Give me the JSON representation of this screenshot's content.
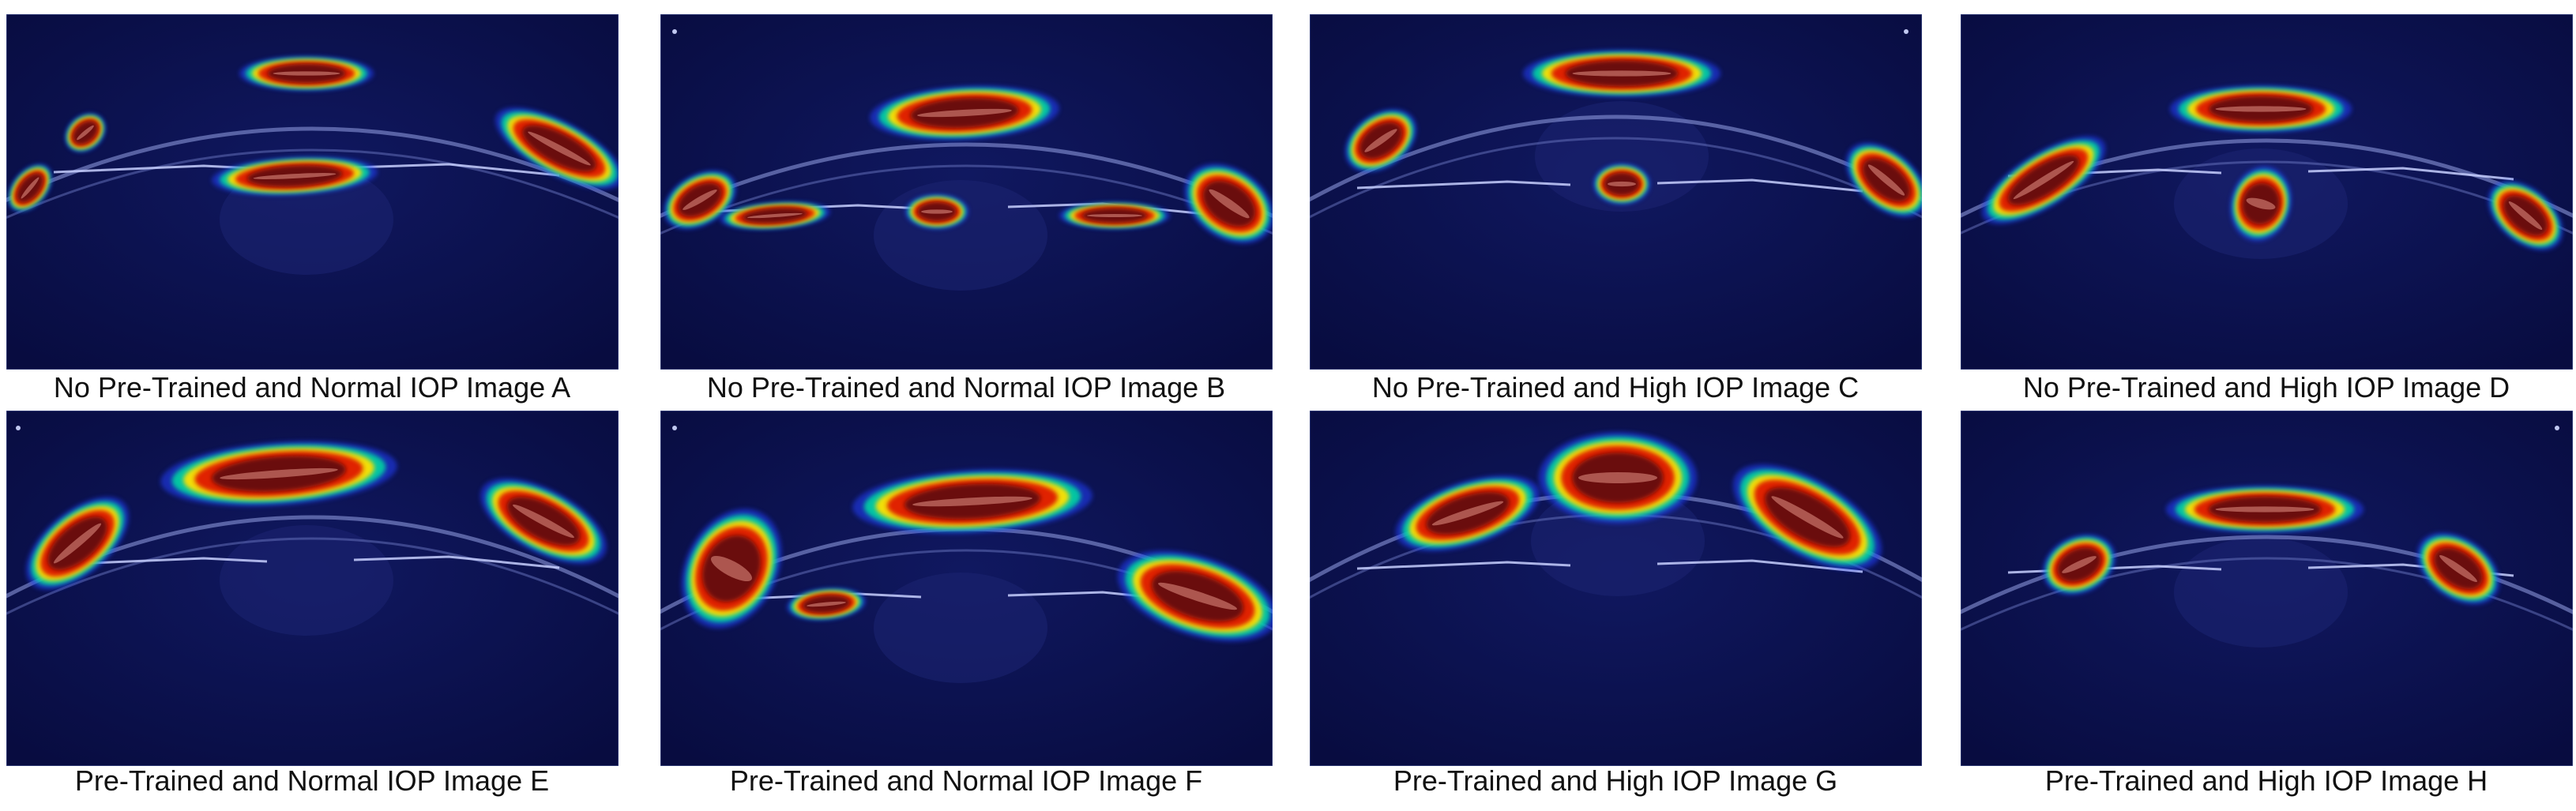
{
  "figure": {
    "panels": [
      {
        "id": "A",
        "caption": "No Pre-Trained and Normal IOP Image A"
      },
      {
        "id": "B",
        "caption": "No Pre-Trained and Normal IOP Image B"
      },
      {
        "id": "C",
        "caption": "No Pre-Trained and High IOP Image C"
      },
      {
        "id": "D",
        "caption": "No Pre-Trained and High IOP Image D"
      },
      {
        "id": "E",
        "caption": "Pre-Trained and Normal IOP Image E"
      },
      {
        "id": "F",
        "caption": "Pre-Trained and Normal IOP Image F"
      },
      {
        "id": "G",
        "caption": "Pre-Trained and High IOP Image G"
      },
      {
        "id": "H",
        "caption": "Pre-Trained and High IOP Image H"
      }
    ],
    "colors": {
      "background": "#0a0f4e",
      "heat_low": "#2040ff",
      "heat_mid": "#00e0a0",
      "heat_warm": "#ffe000",
      "heat_hot": "#e02000",
      "heat_core": "#6a0808"
    }
  }
}
